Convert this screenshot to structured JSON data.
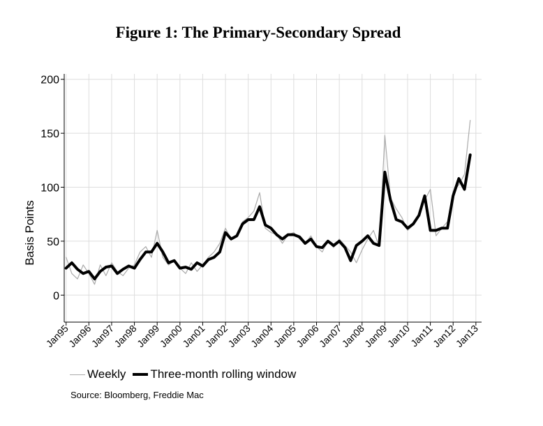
{
  "title": "Figure 1: The Primary-Secondary Spread",
  "source": "Source: Bloomberg, Freddie Mac",
  "colors": {
    "weekly": "#aaaaaa",
    "rolling": "#000000",
    "grid": "#dddddd"
  },
  "chart_data": {
    "type": "line",
    "title": "Figure 1: The Primary-Secondary Spread",
    "ylabel": "Basis Points",
    "xlabel": "",
    "ylim": [
      -25,
      205
    ],
    "xlim": [
      "1994-12",
      "2013-04"
    ],
    "yticks": [
      0,
      50,
      100,
      150,
      200
    ],
    "xticks": [
      "Jan95",
      "Jan96",
      "Jan97",
      "Jan98",
      "Jan99",
      "Jan00",
      "Jan01",
      "Jan02",
      "Jan03",
      "Jan04",
      "Jan05",
      "Jan06",
      "Jan07",
      "Jan08",
      "Jan09",
      "Jan10",
      "Jan11",
      "Jan12",
      "Jan13"
    ],
    "grid": true,
    "legend_position": "bottom",
    "series": [
      {
        "name": "Weekly",
        "x": [
          "1995-01",
          "1995-04",
          "1995-07",
          "1995-10",
          "1996-01",
          "1996-04",
          "1996-07",
          "1996-10",
          "1997-01",
          "1997-04",
          "1997-07",
          "1997-10",
          "1998-01",
          "1998-04",
          "1998-07",
          "1998-10",
          "1999-01",
          "1999-04",
          "1999-07",
          "1999-10",
          "2000-01",
          "2000-04",
          "2000-07",
          "2000-10",
          "2001-01",
          "2001-04",
          "2001-07",
          "2001-10",
          "2002-01",
          "2002-04",
          "2002-07",
          "2002-10",
          "2003-01",
          "2003-04",
          "2003-07",
          "2003-10",
          "2004-01",
          "2004-04",
          "2004-07",
          "2004-10",
          "2005-01",
          "2005-04",
          "2005-07",
          "2005-10",
          "2006-01",
          "2006-04",
          "2006-07",
          "2006-10",
          "2007-01",
          "2007-04",
          "2007-07",
          "2007-10",
          "2008-01",
          "2008-04",
          "2008-07",
          "2008-10",
          "2009-01",
          "2009-04",
          "2009-07",
          "2009-10",
          "2010-01",
          "2010-04",
          "2010-07",
          "2010-10",
          "2011-01",
          "2011-04",
          "2011-07",
          "2011-10",
          "2012-01",
          "2012-04",
          "2012-07",
          "2012-10"
        ],
        "values": [
          35,
          20,
          15,
          28,
          20,
          10,
          28,
          18,
          30,
          22,
          18,
          25,
          28,
          40,
          45,
          35,
          60,
          35,
          28,
          32,
          25,
          20,
          30,
          22,
          28,
          35,
          40,
          48,
          62,
          52,
          55,
          68,
          72,
          78,
          95,
          62,
          58,
          56,
          48,
          56,
          58,
          52,
          48,
          55,
          45,
          40,
          50,
          44,
          52,
          46,
          40,
          30,
          42,
          52,
          60,
          45,
          148,
          90,
          80,
          72,
          60,
          65,
          75,
          88,
          98,
          55,
          62,
          68,
          96,
          102,
          112,
          162
        ]
      },
      {
        "name": "Three-month rolling window",
        "x": [
          "1995-01",
          "1995-04",
          "1995-07",
          "1995-10",
          "1996-01",
          "1996-04",
          "1996-07",
          "1996-10",
          "1997-01",
          "1997-04",
          "1997-07",
          "1997-10",
          "1998-01",
          "1998-04",
          "1998-07",
          "1998-10",
          "1999-01",
          "1999-04",
          "1999-07",
          "1999-10",
          "2000-01",
          "2000-04",
          "2000-07",
          "2000-10",
          "2001-01",
          "2001-04",
          "2001-07",
          "2001-10",
          "2002-01",
          "2002-04",
          "2002-07",
          "2002-10",
          "2003-01",
          "2003-04",
          "2003-07",
          "2003-10",
          "2004-01",
          "2004-04",
          "2004-07",
          "2004-10",
          "2005-01",
          "2005-04",
          "2005-07",
          "2005-10",
          "2006-01",
          "2006-04",
          "2006-07",
          "2006-10",
          "2007-01",
          "2007-04",
          "2007-07",
          "2007-10",
          "2008-01",
          "2008-04",
          "2008-07",
          "2008-10",
          "2009-01",
          "2009-04",
          "2009-07",
          "2009-10",
          "2010-01",
          "2010-04",
          "2010-07",
          "2010-10",
          "2011-01",
          "2011-04",
          "2011-07",
          "2011-10",
          "2012-01",
          "2012-04",
          "2012-07",
          "2012-10"
        ],
        "values": [
          25,
          30,
          24,
          20,
          22,
          15,
          22,
          26,
          27,
          20,
          24,
          27,
          25,
          33,
          40,
          40,
          48,
          40,
          30,
          32,
          25,
          26,
          24,
          30,
          27,
          33,
          35,
          40,
          58,
          52,
          55,
          66,
          70,
          70,
          82,
          65,
          62,
          56,
          52,
          56,
          56,
          54,
          48,
          52,
          45,
          44,
          50,
          46,
          50,
          44,
          32,
          46,
          50,
          55,
          48,
          46,
          114,
          88,
          70,
          68,
          62,
          66,
          74,
          92,
          60,
          60,
          62,
          62,
          92,
          108,
          98,
          130
        ]
      }
    ]
  }
}
